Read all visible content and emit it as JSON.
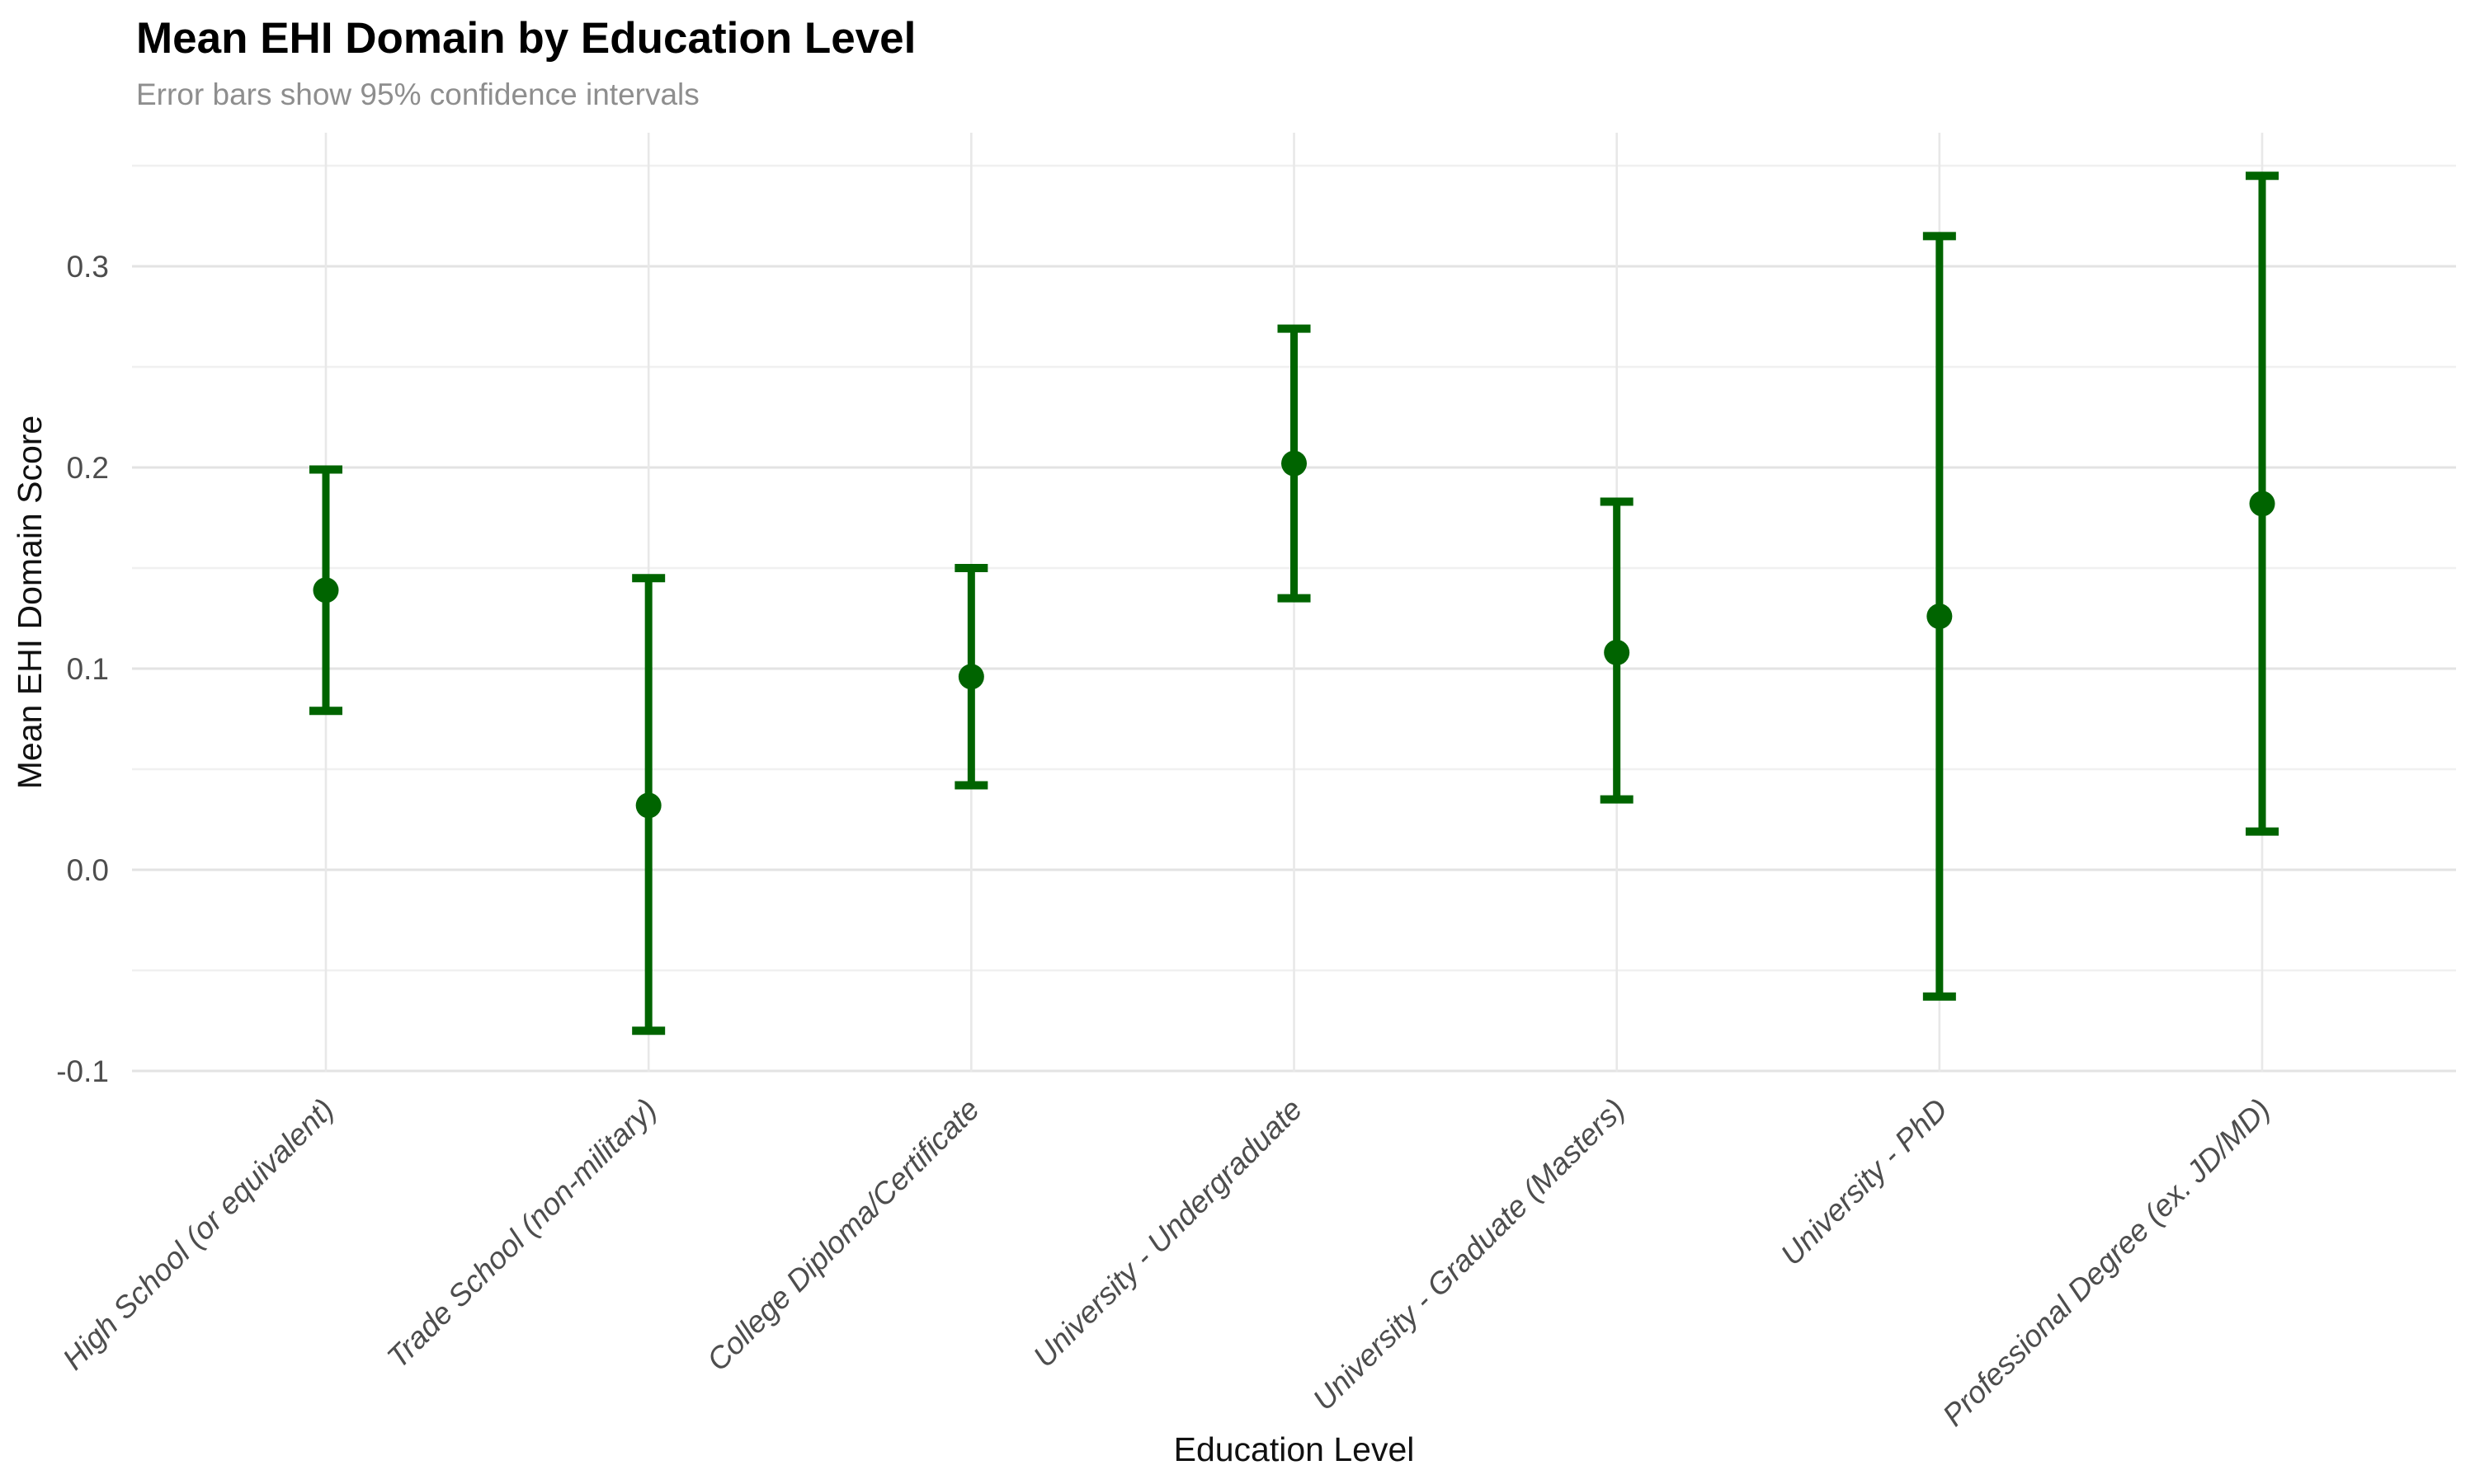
{
  "chart_data": {
    "type": "pointrange",
    "title": "Mean EHI Domain by Education Level",
    "subtitle": "Error bars show 95% confidence intervals",
    "xlabel": "Education Level",
    "ylabel": "Mean EHI Domain Score",
    "categories": [
      "High School (or equivalent)",
      "Trade School (non-military)",
      "College Diploma/Certificate",
      "University - Undergraduate",
      "University - Graduate (Masters)",
      "University - PhD",
      "Professional Degree (ex. JD/MD)"
    ],
    "points": [
      {
        "category": "High School (or equivalent)",
        "mean": 0.139,
        "ci_lower": 0.079,
        "ci_upper": 0.199
      },
      {
        "category": "Trade School (non-military)",
        "mean": 0.032,
        "ci_lower": -0.08,
        "ci_upper": 0.145
      },
      {
        "category": "College Diploma/Certificate",
        "mean": 0.096,
        "ci_lower": 0.042,
        "ci_upper": 0.15
      },
      {
        "category": "University - Undergraduate",
        "mean": 0.202,
        "ci_lower": 0.135,
        "ci_upper": 0.269
      },
      {
        "category": "University - Graduate (Masters)",
        "mean": 0.108,
        "ci_lower": 0.035,
        "ci_upper": 0.183
      },
      {
        "category": "University - PhD",
        "mean": 0.126,
        "ci_lower": -0.063,
        "ci_upper": 0.315
      },
      {
        "category": "Professional Degree (ex. JD/MD)",
        "mean": 0.182,
        "ci_lower": 0.019,
        "ci_upper": 0.345
      }
    ],
    "y_ticks": [
      -0.1,
      0.0,
      0.1,
      0.2,
      0.3
    ],
    "y_tick_labels": [
      "-0.1",
      "0.0",
      "0.1",
      "0.2",
      "0.3"
    ],
    "y_minor_ticks": [
      -0.05,
      0.05,
      0.15,
      0.25,
      0.35
    ],
    "ylim": [
      -0.1005,
      0.3665
    ],
    "grid": true,
    "legend": false,
    "error_bar_meaning": "95% confidence intervals",
    "colors": {
      "point": "#006400",
      "error_bar": "#006400",
      "grid_major": "#e3e3e3",
      "grid_minor": "#f0f0f0",
      "grid_vertical": "#e8e8e8",
      "axis_text": "#4d4d4d",
      "axis_title": "#111111",
      "title": "#000000",
      "subtitle": "#8e8e8e",
      "background": "#ffffff"
    }
  }
}
